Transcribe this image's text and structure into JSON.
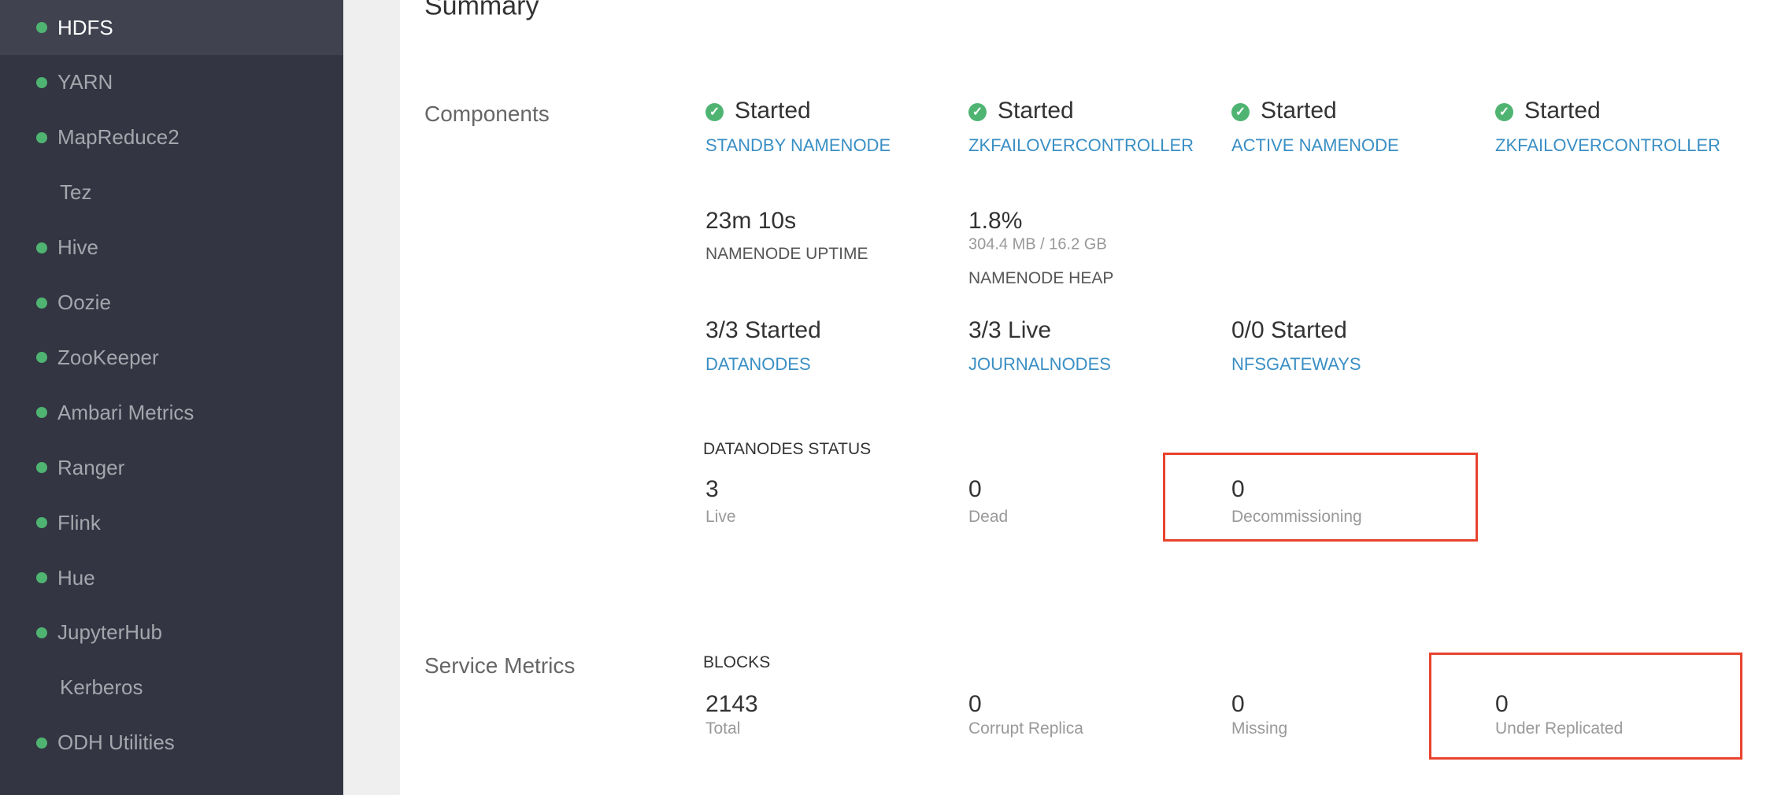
{
  "sidebar": {
    "items": [
      {
        "label": "HDFS",
        "dot": true,
        "active": true
      },
      {
        "label": "YARN",
        "dot": true
      },
      {
        "label": "MapReduce2",
        "dot": true
      },
      {
        "label": "Tez",
        "dot": false
      },
      {
        "label": "Hive",
        "dot": true
      },
      {
        "label": "Oozie",
        "dot": true
      },
      {
        "label": "ZooKeeper",
        "dot": true
      },
      {
        "label": "Ambari Metrics",
        "dot": true
      },
      {
        "label": "Ranger",
        "dot": true
      },
      {
        "label": "Flink",
        "dot": true
      },
      {
        "label": "Hue",
        "dot": true
      },
      {
        "label": "JupyterHub",
        "dot": true
      },
      {
        "label": "Kerberos",
        "dot": false
      },
      {
        "label": "ODH Utilities",
        "dot": true
      }
    ],
    "status_color": "#4fb472"
  },
  "summary": {
    "title": "Summary",
    "components_label": "Components",
    "components": [
      {
        "status": "Started",
        "name": "STANDBY NAMENODE"
      },
      {
        "status": "Started",
        "name": "ZKFAILOVERCONTROLLER"
      },
      {
        "status": "Started",
        "name": "ACTIVE NAMENODE"
      },
      {
        "status": "Started",
        "name": "ZKFAILOVERCONTROLLER"
      }
    ],
    "uptime": {
      "value": "23m 10s",
      "label": "NAMENODE UPTIME"
    },
    "heap": {
      "value": "1.8%",
      "detail": "304.4 MB / 16.2 GB",
      "label": "NAMENODE HEAP"
    },
    "counts": [
      {
        "value": "3/3 Started",
        "name": "DATANODES"
      },
      {
        "value": "3/3 Live",
        "name": "JOURNALNODES"
      },
      {
        "value": "0/0 Started",
        "name": "NFSGATEWAYS"
      }
    ],
    "datanodes_status": {
      "label": "DATANODES STATUS",
      "items": [
        {
          "value": "3",
          "label": "Live"
        },
        {
          "value": "0",
          "label": "Dead"
        },
        {
          "value": "0",
          "label": "Decommissioning"
        }
      ]
    },
    "service_metrics_label": "Service Metrics",
    "blocks": {
      "label": "BLOCKS",
      "items": [
        {
          "value": "2143",
          "label": "Total"
        },
        {
          "value": "0",
          "label": "Corrupt Replica"
        },
        {
          "value": "0",
          "label": "Missing"
        },
        {
          "value": "0",
          "label": "Under Replicated"
        }
      ]
    },
    "highlight_color": "#e8432e"
  }
}
